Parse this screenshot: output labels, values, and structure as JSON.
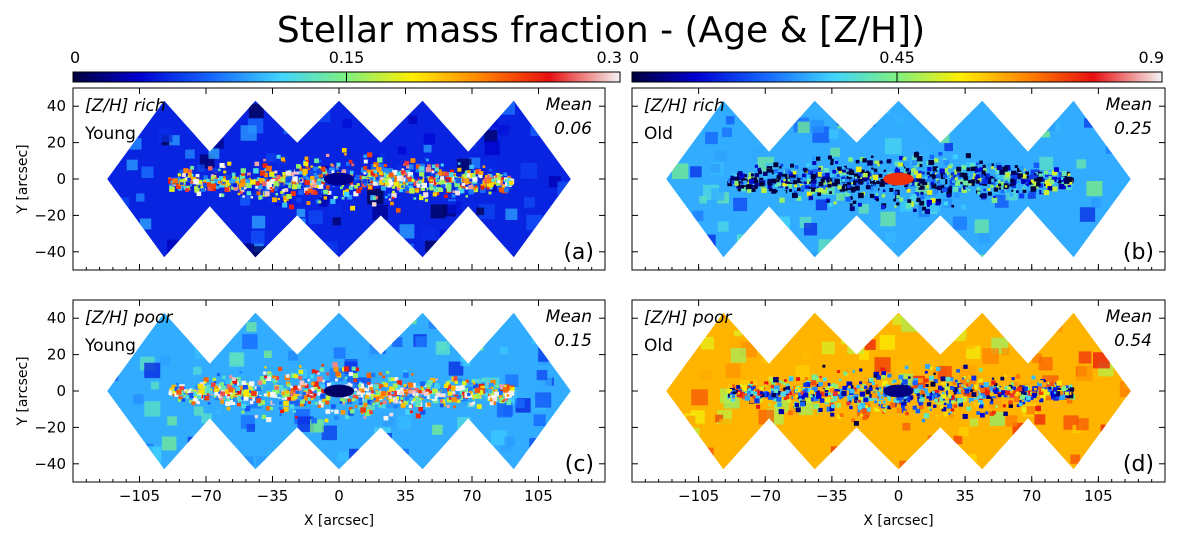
{
  "title": "Stellar mass fraction - (Age & [Z/H])",
  "chart_data": {
    "type": "heatmap",
    "title": "Stellar mass fraction - (Age & [Z/H])",
    "xlabel": "X [arcsec]",
    "ylabel": "Y [arcsec]",
    "xlim": [
      -140,
      140
    ],
    "ylim": [
      -50,
      50
    ],
    "xticks": [
      -105,
      -70,
      -35,
      0,
      35,
      70,
      105
    ],
    "yticks": [
      40,
      20,
      0,
      -20,
      -40
    ],
    "colormap": "jet",
    "colorbars": [
      {
        "min": 0,
        "max": 0.3,
        "ticks": [
          "0",
          "0.15",
          "0.3"
        ],
        "applies_to": [
          "a",
          "c"
        ]
      },
      {
        "min": 0,
        "max": 0.9,
        "ticks": [
          "0",
          "0.45",
          "0.9"
        ],
        "applies_to": [
          "b",
          "d"
        ]
      }
    ],
    "panels": [
      {
        "id": "a",
        "label": "(a)",
        "metallicity": "[Z/H] rich",
        "age": "Young",
        "mean_label": "Mean",
        "mean": "0.06",
        "vmax": 0.3,
        "background": 0.05,
        "disk": 0.18,
        "center": 0.02
      },
      {
        "id": "b",
        "label": "(b)",
        "metallicity": "[Z/H] rich",
        "age": "Old",
        "mean_label": "Mean",
        "mean": "0.25",
        "vmax": 0.9,
        "background": 0.3,
        "disk": 0.15,
        "center": 0.75
      },
      {
        "id": "c",
        "label": "(c)",
        "metallicity": "[Z/H] poor",
        "age": "Young",
        "mean_label": "Mean",
        "mean": "0.15",
        "vmax": 0.3,
        "background": 0.1,
        "disk": 0.2,
        "center": 0.01
      },
      {
        "id": "d",
        "label": "(d)",
        "metallicity": "[Z/H] poor",
        "age": "Old",
        "mean_label": "Mean",
        "mean": "0.54",
        "vmax": 0.9,
        "background": 0.62,
        "disk": 0.4,
        "center": 0.05
      }
    ]
  }
}
